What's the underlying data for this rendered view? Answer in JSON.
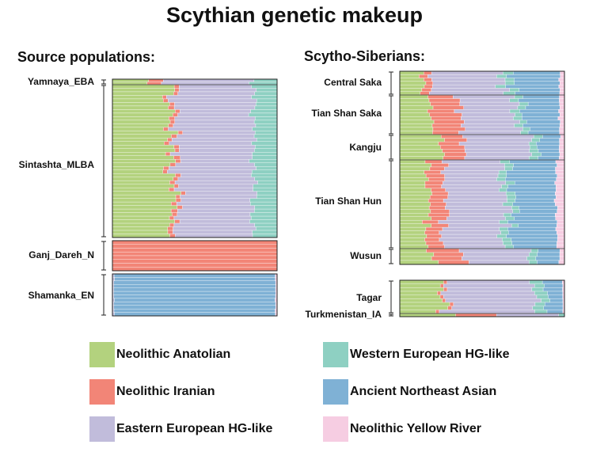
{
  "title": "Scythian genetic makeup",
  "panels": [
    {
      "id": "left",
      "title": "Source populations:"
    },
    {
      "id": "right",
      "title": "Scytho-Siberians:"
    }
  ],
  "legend": [
    {
      "key": "anatolian",
      "label": "Neolithic Anatolian",
      "color": "#b3d27e"
    },
    {
      "key": "iranian",
      "label": "Neolithic Iranian",
      "color": "#f28577"
    },
    {
      "key": "eehg",
      "label": "Eastern European HG-like",
      "color": "#c1bcdb"
    },
    {
      "key": "wehg",
      "label": "Western European HG-like",
      "color": "#8ed0c2"
    },
    {
      "key": "ane_asian",
      "label": "Ancient Northeast Asian",
      "color": "#7fb1d5"
    },
    {
      "key": "yellow_river",
      "label": "Neolithic Yellow River",
      "color": "#f6cde2"
    }
  ],
  "chart_data": [
    {
      "type": "bar",
      "orientation": "horizontal-stacked-100",
      "panel": "Source populations:",
      "components": [
        "Neolithic Anatolian",
        "Neolithic Iranian",
        "Eastern European HG-like",
        "Western European HG-like",
        "Ancient Northeast Asian",
        "Neolithic Yellow River"
      ],
      "groups": [
        {
          "label": "Yamnaya_EBA",
          "values": [
            0.2,
            0.08,
            0.58,
            0.14,
            0.0,
            0.0
          ]
        },
        {
          "label": "Sintashta_MLBA",
          "values": [
            0.36,
            0.03,
            0.47,
            0.14,
            0.0,
            0.0
          ]
        },
        {
          "label": "Ganj_Dareh_N",
          "values": [
            0.0,
            1.0,
            0.0,
            0.0,
            0.0,
            0.0
          ]
        },
        {
          "label": "Shamanka_EN",
          "values": [
            0.0,
            0.0,
            0.01,
            0.0,
            0.98,
            0.01
          ]
        }
      ]
    },
    {
      "type": "bar",
      "orientation": "horizontal-stacked-100",
      "panel": "Scytho-Siberians:",
      "components": [
        "Neolithic Anatolian",
        "Neolithic Iranian",
        "Eastern European HG-like",
        "Western European HG-like",
        "Ancient Northeast Asian",
        "Neolithic Yellow River"
      ],
      "groups": [
        {
          "label": "Central Saka",
          "values": [
            0.14,
            0.05,
            0.43,
            0.06,
            0.29,
            0.03
          ]
        },
        {
          "label": "Tian Shan Saka",
          "values": [
            0.19,
            0.18,
            0.34,
            0.05,
            0.21,
            0.03
          ]
        },
        {
          "label": "Kangju",
          "values": [
            0.27,
            0.13,
            0.39,
            0.05,
            0.13,
            0.03
          ]
        },
        {
          "label": "Tian Shan Hun",
          "values": [
            0.17,
            0.1,
            0.36,
            0.05,
            0.27,
            0.05
          ]
        },
        {
          "label": "Wusun",
          "values": [
            0.2,
            0.19,
            0.39,
            0.05,
            0.14,
            0.03
          ]
        },
        {
          "label": "Tagar",
          "values": [
            0.26,
            0.02,
            0.54,
            0.07,
            0.1,
            0.01
          ]
        },
        {
          "label": "Turkmenistan_IA",
          "values": [
            0.32,
            0.29,
            0.35,
            0.04,
            0.0,
            0.0
          ]
        }
      ]
    }
  ]
}
